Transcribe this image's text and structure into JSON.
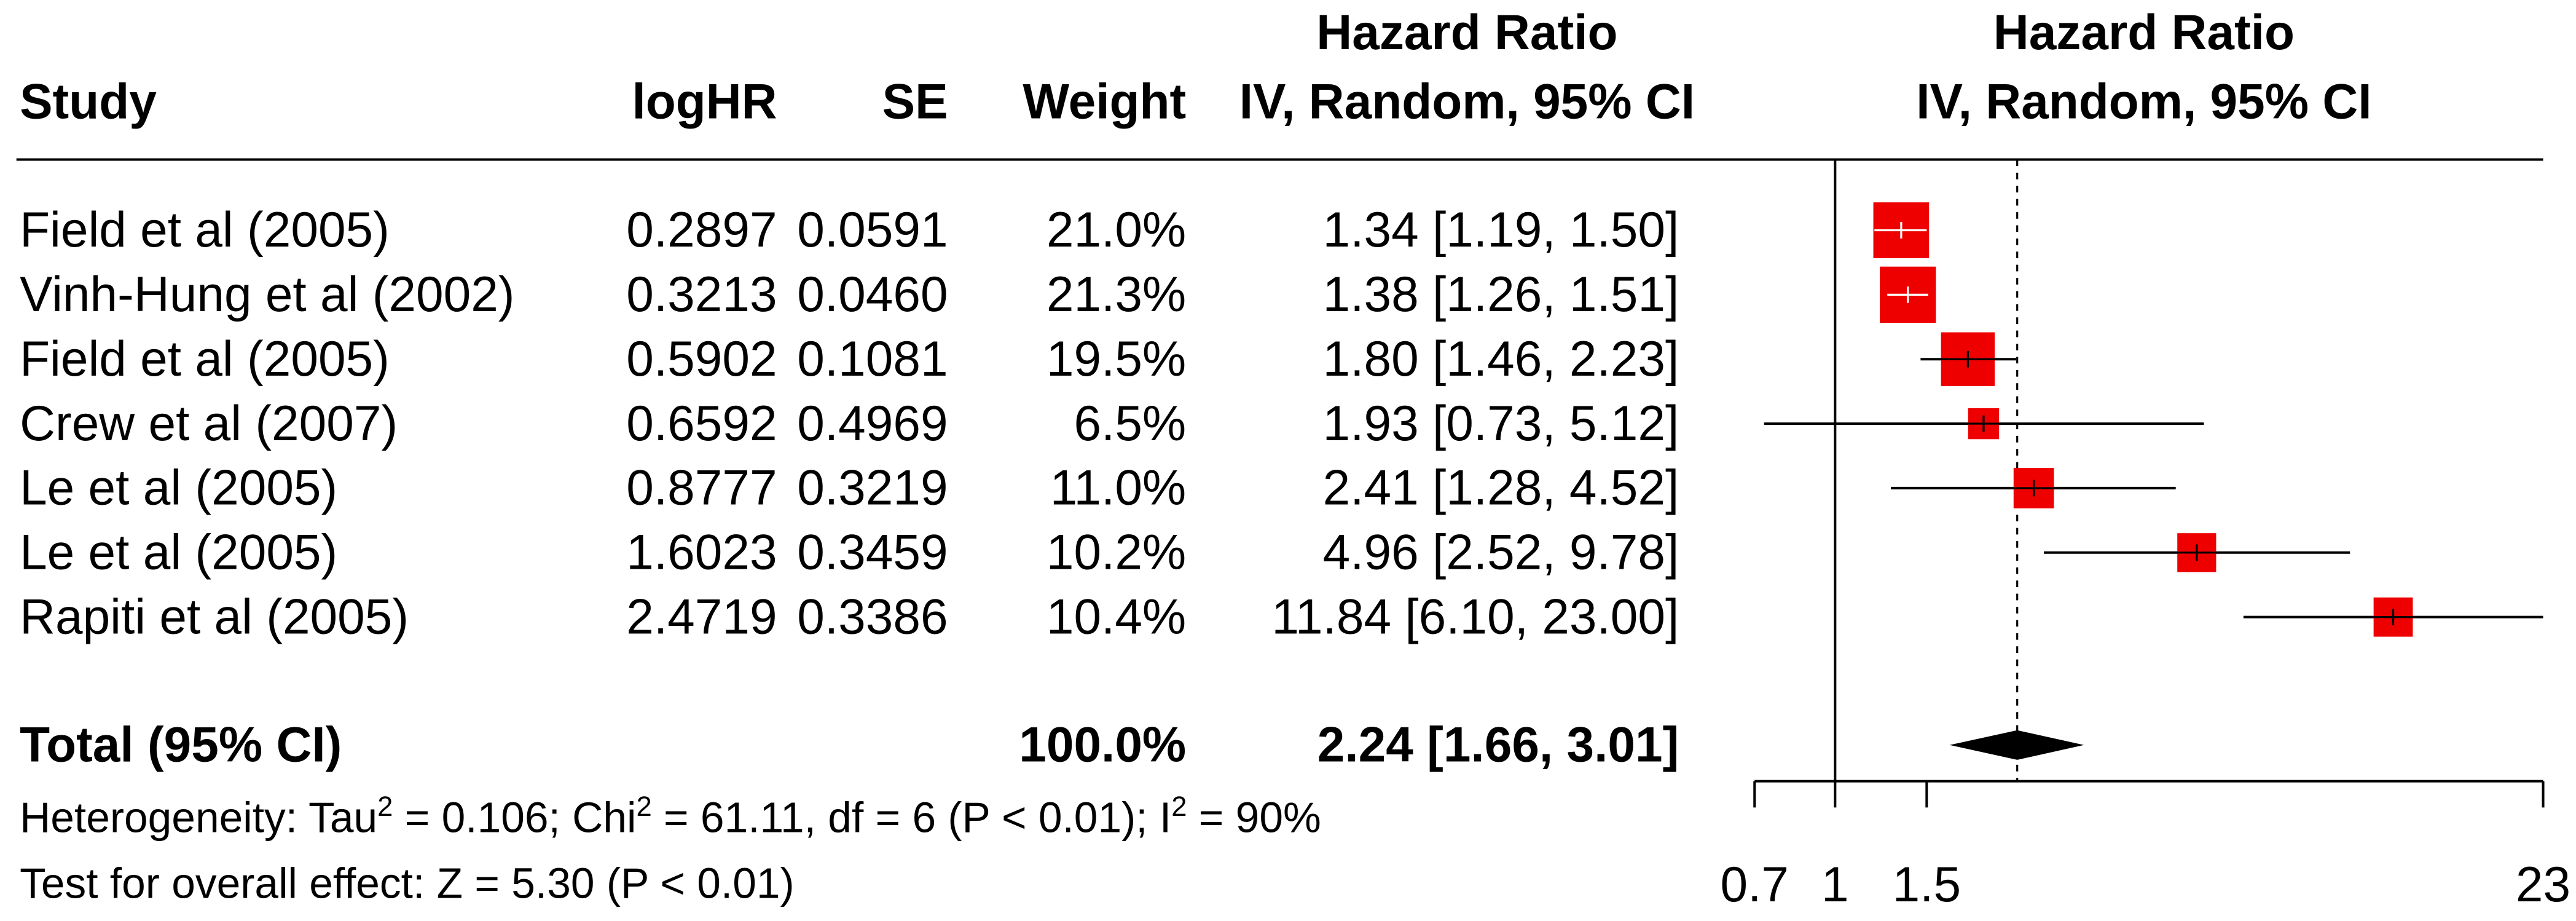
{
  "chart_data": {
    "type": "forest",
    "headers": {
      "study": "Study",
      "loghr": "logHR",
      "se": "SE",
      "weight": "Weight",
      "hr": [
        "Hazard Ratio",
        "IV, Random, 95% CI"
      ],
      "plot": [
        "Hazard Ratio",
        "IV, Random, 95% CI"
      ]
    },
    "rows": [
      {
        "study": "Field et al (2005)",
        "loghr": "0.2897",
        "se": "0.0591",
        "weight_label": "21.0%",
        "hr_label": "1.34 [1.19,  1.50]",
        "weight": 21.0,
        "hr": 1.34,
        "ci": [
          1.19,
          1.5
        ]
      },
      {
        "study": "Vinh-Hung et al (2002)",
        "loghr": "0.3213",
        "se": "0.0460",
        "weight_label": "21.3%",
        "hr_label": "1.38 [1.26,  1.51]",
        "weight": 21.3,
        "hr": 1.38,
        "ci": [
          1.26,
          1.51
        ]
      },
      {
        "study": "Field et al (2005)",
        "loghr": "0.5902",
        "se": "0.1081",
        "weight_label": "19.5%",
        "hr_label": "1.80 [1.46,  2.23]",
        "weight": 19.5,
        "hr": 1.8,
        "ci": [
          1.46,
          2.23
        ]
      },
      {
        "study": "Crew et al  (2007)",
        "loghr": "0.6592",
        "se": "0.4969",
        "weight_label": "6.5%",
        "hr_label": "1.93 [0.73,  5.12]",
        "weight": 6.5,
        "hr": 1.93,
        "ci": [
          0.73,
          5.12
        ]
      },
      {
        "study": "Le et al (2005)",
        "loghr": "0.8777",
        "se": "0.3219",
        "weight_label": "11.0%",
        "hr_label": "2.41 [1.28,  4.52]",
        "weight": 11.0,
        "hr": 2.41,
        "ci": [
          1.28,
          4.52
        ]
      },
      {
        "study": "Le et al (2005)",
        "loghr": "1.6023",
        "se": "0.3459",
        "weight_label": "10.2%",
        "hr_label": "4.96 [2.52,  9.78]",
        "weight": 10.2,
        "hr": 4.96,
        "ci": [
          2.52,
          9.78
        ]
      },
      {
        "study": "Rapiti et al (2005)",
        "loghr": "2.4719",
        "se": "0.3386",
        "weight_label": "10.4%",
        "hr_label": "11.84 [6.10, 23.00]",
        "weight": 10.4,
        "hr": 11.84,
        "ci": [
          6.1,
          23.0
        ]
      }
    ],
    "total": {
      "study": "Total (95% CI)",
      "weight_label": "100.0%",
      "hr_label": "2.24 [1.66,  3.01]",
      "hr": 2.24,
      "ci": [
        1.66,
        3.01
      ]
    },
    "heterogeneity": [
      "Heterogeneity: Tau",
      "2",
      " = 0.106; Chi",
      "2",
      " = 61.11, df = 6 (P < 0.01); I",
      "2",
      " = 90%"
    ],
    "overall_effect": "Test for overall effect: Z = 5.30 (P < 0.01)",
    "xlim": [
      0.7,
      23
    ],
    "xticks": [
      0.7,
      1,
      1.5,
      23
    ],
    "log_scale": true,
    "reference_line": 1,
    "color": "#ee0000"
  }
}
